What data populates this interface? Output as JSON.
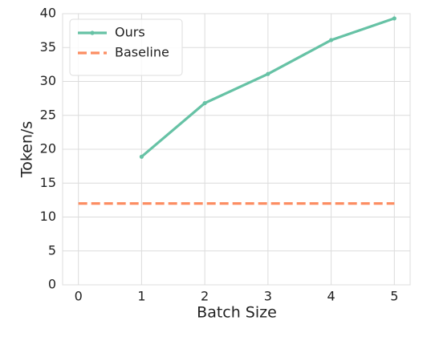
{
  "chart_data": {
    "type": "line",
    "x_label": "Batch Size",
    "y_label": "Token/s",
    "x": [
      0,
      1,
      2,
      3,
      4,
      5
    ],
    "series": [
      {
        "name": "Ours",
        "color": "#66c2a5",
        "style": "solid",
        "markers": true,
        "values": [
          null,
          18.9,
          26.8,
          31.1,
          36.1,
          39.3
        ]
      },
      {
        "name": "Baseline",
        "color": "#fc8d62",
        "style": "dashed",
        "markers": false,
        "values": [
          12,
          12,
          12,
          12,
          12,
          12
        ]
      }
    ],
    "xlim": [
      -0.25,
      5.25
    ],
    "xticks": [
      0,
      1,
      2,
      3,
      4,
      5
    ],
    "ylim": [
      0,
      40
    ],
    "yticks": [
      0,
      5,
      10,
      15,
      20,
      25,
      30,
      35,
      40
    ],
    "grid": true,
    "legend": "upper-left"
  }
}
